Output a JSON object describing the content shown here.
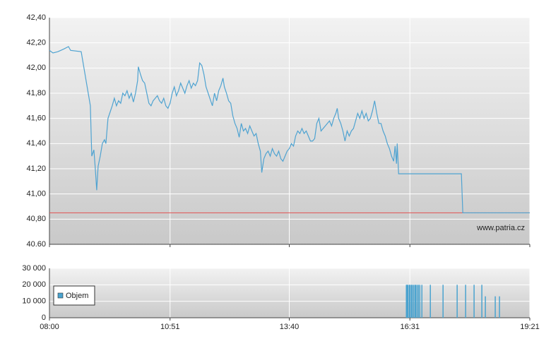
{
  "chart_data": [
    {
      "type": "line",
      "x": [
        "08:00",
        "08:05",
        "08:12",
        "08:20",
        "08:27",
        "08:30",
        "08:45",
        "08:58",
        "09:00",
        "09:03",
        "09:05",
        "09:07",
        "09:09",
        "09:12",
        "09:15",
        "09:18",
        "09:20",
        "09:23",
        "09:26",
        "09:29",
        "09:32",
        "09:35",
        "09:38",
        "09:41",
        "09:44",
        "09:47",
        "09:50",
        "09:53",
        "09:56",
        "09:59",
        "10:02",
        "10:05",
        "10:06",
        "10:09",
        "10:12",
        "10:15",
        "10:18",
        "10:21",
        "10:24",
        "10:27",
        "10:30",
        "10:33",
        "10:36",
        "10:39",
        "10:42",
        "10:45",
        "10:48",
        "10:51",
        "10:54",
        "10:57",
        "11:00",
        "11:03",
        "11:06",
        "11:09",
        "11:12",
        "11:15",
        "11:18",
        "11:21",
        "11:24",
        "11:27",
        "11:30",
        "11:33",
        "11:36",
        "11:39",
        "11:42",
        "11:45",
        "11:48",
        "11:51",
        "11:54",
        "11:57",
        "12:00",
        "12:03",
        "12:06",
        "12:08",
        "12:11",
        "12:14",
        "12:17",
        "12:20",
        "12:23",
        "12:26",
        "12:29",
        "12:32",
        "12:35",
        "12:38",
        "12:41",
        "12:44",
        "12:47",
        "12:50",
        "12:53",
        "12:56",
        "12:59",
        "13:01",
        "13:04",
        "13:07",
        "13:10",
        "13:13",
        "13:16",
        "13:19",
        "13:22",
        "13:25",
        "13:28",
        "13:31",
        "13:34",
        "13:37",
        "13:40",
        "13:43",
        "13:46",
        "13:49",
        "13:52",
        "13:55",
        "13:58",
        "14:01",
        "14:04",
        "14:07",
        "14:10",
        "14:13",
        "14:16",
        "14:19",
        "14:22",
        "14:25",
        "14:28",
        "14:31",
        "14:34",
        "14:37",
        "14:40",
        "14:43",
        "14:46",
        "14:48",
        "14:50",
        "14:53",
        "14:56",
        "14:59",
        "15:02",
        "15:05",
        "15:08",
        "15:11",
        "15:14",
        "15:17",
        "15:20",
        "15:23",
        "15:26",
        "15:29",
        "15:32",
        "15:35",
        "15:38",
        "15:41",
        "15:44",
        "15:47",
        "15:50",
        "15:53",
        "15:56",
        "15:59",
        "16:02",
        "16:05",
        "16:08",
        "16:10",
        "16:12",
        "16:13",
        "16:15",
        "17:44",
        "17:46",
        "19:21"
      ],
      "series": [
        {
          "color": "#4fa3d1",
          "values": [
            42.14,
            42.12,
            42.13,
            42.15,
            42.17,
            42.14,
            42.13,
            41.7,
            41.3,
            41.35,
            41.2,
            41.03,
            41.22,
            41.3,
            41.4,
            41.43,
            41.4,
            41.6,
            41.65,
            41.7,
            41.76,
            41.7,
            41.74,
            41.72,
            41.8,
            41.78,
            41.82,
            41.76,
            41.8,
            41.73,
            41.8,
            41.9,
            42.01,
            41.95,
            41.9,
            41.88,
            41.8,
            41.72,
            41.7,
            41.74,
            41.76,
            41.78,
            41.74,
            41.72,
            41.76,
            41.7,
            41.68,
            41.72,
            41.8,
            41.85,
            41.78,
            41.82,
            41.88,
            41.84,
            41.8,
            41.86,
            41.9,
            41.84,
            41.88,
            41.86,
            41.9,
            42.04,
            42.02,
            41.95,
            41.85,
            41.8,
            41.75,
            41.7,
            41.8,
            41.74,
            41.82,
            41.86,
            41.92,
            41.85,
            41.8,
            41.74,
            41.72,
            41.62,
            41.56,
            41.52,
            41.45,
            41.56,
            41.5,
            41.52,
            41.48,
            41.54,
            41.5,
            41.46,
            41.48,
            41.4,
            41.34,
            41.17,
            41.28,
            41.32,
            41.34,
            41.3,
            41.36,
            41.32,
            41.3,
            41.34,
            41.28,
            41.26,
            41.3,
            41.34,
            41.36,
            41.4,
            41.38,
            41.46,
            41.5,
            41.48,
            41.52,
            41.48,
            41.5,
            41.46,
            41.42,
            41.42,
            41.44,
            41.56,
            41.6,
            41.5,
            41.52,
            41.54,
            41.56,
            41.58,
            41.54,
            41.6,
            41.64,
            41.68,
            41.6,
            41.56,
            41.5,
            41.42,
            41.5,
            41.46,
            41.5,
            41.52,
            41.58,
            41.64,
            41.6,
            41.66,
            41.6,
            41.64,
            41.58,
            41.6,
            41.66,
            41.74,
            41.64,
            41.56,
            41.56,
            41.5,
            41.46,
            41.4,
            41.36,
            41.3,
            41.26,
            41.38,
            41.24,
            41.4,
            41.16,
            41.16,
            40.85,
            40.85
          ]
        }
      ],
      "reference_line": 40.85,
      "reference_color": "#e05050",
      "xlim": [
        "08:00",
        "19:21"
      ],
      "ylim": [
        40.6,
        42.4
      ],
      "yticks": [
        {
          "value": 42.4,
          "label": "42,40"
        },
        {
          "value": 42.2,
          "label": "42,20"
        },
        {
          "value": 42.0,
          "label": "42,00"
        },
        {
          "value": 41.8,
          "label": "41,80"
        },
        {
          "value": 41.6,
          "label": "41,60"
        },
        {
          "value": 41.4,
          "label": "41,40"
        },
        {
          "value": 41.2,
          "label": "41,20"
        },
        {
          "value": 41.0,
          "label": "41,00"
        },
        {
          "value": 40.8,
          "label": "40,80"
        },
        {
          "value": 40.6,
          "label": "40.60"
        }
      ],
      "annotation": "www.patria.cz",
      "grid": true
    },
    {
      "type": "bar",
      "x": [
        "16:26",
        "16:27",
        "16:28",
        "16:30",
        "16:31",
        "16:33",
        "16:34",
        "16:36",
        "16:38",
        "16:39",
        "16:41",
        "16:43",
        "16:45",
        "16:48",
        "17:00",
        "17:18",
        "17:38",
        "17:50",
        "18:02",
        "18:13",
        "18:18",
        "18:32",
        "18:38"
      ],
      "series": [
        {
          "name": "Objem",
          "color": "#4aa3cf",
          "values": [
            20000,
            20000,
            20000,
            20000,
            20000,
            20000,
            20000,
            20000,
            20000,
            20000,
            20000,
            20000,
            20000,
            20000,
            20000,
            20000,
            20000,
            20000,
            20000,
            20000,
            13000,
            13000,
            13000
          ]
        }
      ],
      "xlim": [
        "08:00",
        "19:21"
      ],
      "xticks": [
        "08:00",
        "10:51",
        "13:40",
        "16:31",
        "19:21"
      ],
      "ylim": [
        0,
        30000
      ],
      "yticks": [
        {
          "value": 30000,
          "label": "30 000"
        },
        {
          "value": 20000,
          "label": "20 000"
        },
        {
          "value": 10000,
          "label": "10 000"
        },
        0
      ],
      "legend": "bottom-left",
      "grid": true
    }
  ]
}
